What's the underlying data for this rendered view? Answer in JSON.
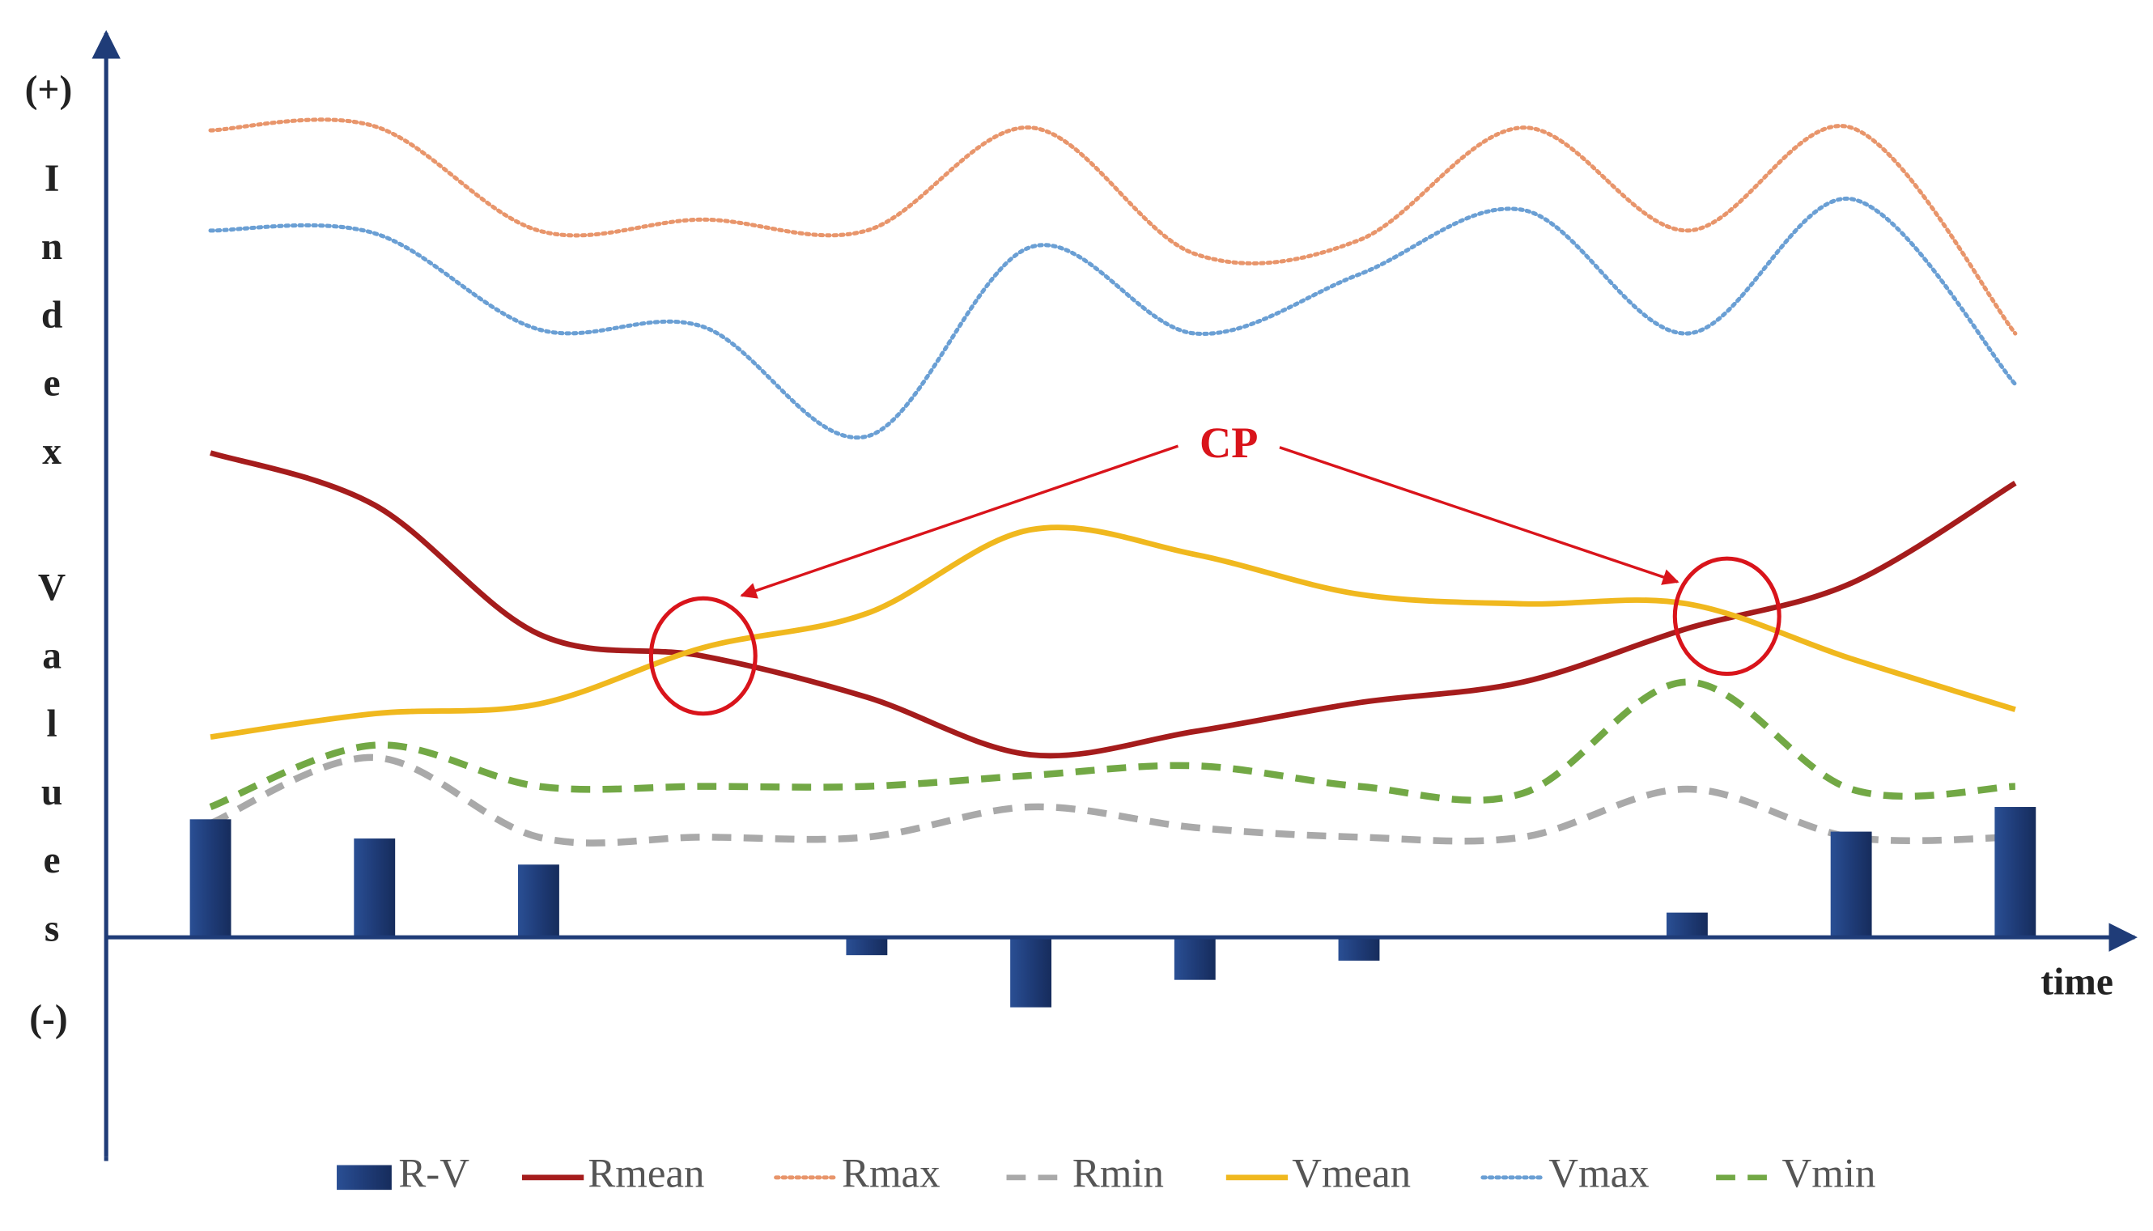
{
  "chart_data": {
    "type": "combo",
    "y_label_top": "(+)",
    "y_label": "Index Values",
    "y_label_bottom": "(-)",
    "x_label": "time",
    "annotation": "CP",
    "categories": [
      null,
      null,
      null,
      null,
      null,
      null,
      null,
      null,
      null,
      null,
      null,
      null
    ],
    "ylim": [
      -157,
      658
    ],
    "series": [
      {
        "name": "R-V",
        "type": "bar",
        "color": "#1f3c78",
        "values": [
          86,
          72,
          53,
          0,
          -13,
          -51,
          -31,
          -17,
          0,
          18,
          77,
          95
        ]
      },
      {
        "name": "Rmean",
        "type": "line",
        "dash": "solid",
        "color": "#a51c1c",
        "values": [
          353,
          315,
          221,
          205,
          175,
          133,
          150,
          171,
          186,
          225,
          258,
          331
        ]
      },
      {
        "name": "Rmax",
        "type": "line",
        "dash": "dotted",
        "color": "#e8956b",
        "values": [
          588,
          591,
          515,
          523,
          515,
          590,
          498,
          508,
          590,
          515,
          590,
          440
        ]
      },
      {
        "name": "Rmin",
        "type": "line",
        "dash": "dashed",
        "color": "#a9a9a9",
        "values": [
          83,
          131,
          73,
          73,
          73,
          95,
          80,
          73,
          73,
          108,
          73,
          73
        ]
      },
      {
        "name": "Vmean",
        "type": "line",
        "dash": "solid",
        "color": "#f0b81e",
        "values": [
          146,
          163,
          170,
          211,
          236,
          297,
          279,
          250,
          243,
          243,
          203,
          166
        ]
      },
      {
        "name": "Vmax",
        "type": "line",
        "dash": "dotted",
        "color": "#6a9fd4",
        "values": [
          515,
          513,
          443,
          445,
          365,
          503,
          440,
          483,
          530,
          440,
          538,
          403
        ]
      },
      {
        "name": "Vmin",
        "type": "line",
        "dash": "dashed",
        "color": "#72a845",
        "values": [
          95,
          140,
          110,
          110,
          110,
          118,
          125,
          110,
          105,
          186,
          108,
          110
        ]
      }
    ]
  }
}
